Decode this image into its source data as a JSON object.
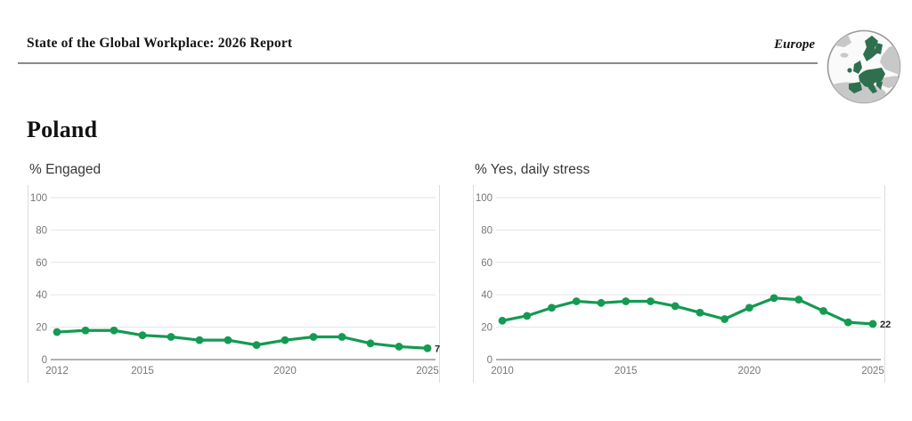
{
  "header": {
    "title": "State of the Global Workplace: 2026 Report",
    "region": "Europe"
  },
  "page": {
    "country": "Poland"
  },
  "colors": {
    "line": "#149a52",
    "grid": "#e5e5e5",
    "zero_axis": "#999999",
    "panel_border": "#dcdcdc",
    "tick_label": "#777777",
    "point_label": "#262626",
    "map_border": "#9a9a9a",
    "map_ocean": "#fafafa",
    "map_land": "#c8c8c8",
    "map_region": "#2f6f4f"
  },
  "chart_data": [
    {
      "type": "line",
      "title": "% Engaged",
      "x": [
        2012,
        2013,
        2014,
        2015,
        2016,
        2017,
        2018,
        2019,
        2020,
        2021,
        2022,
        2023,
        2024,
        2025
      ],
      "values": [
        17,
        18,
        18,
        15,
        14,
        12,
        12,
        9,
        12,
        14,
        14,
        10,
        8,
        7
      ],
      "ylim": [
        0,
        100
      ],
      "yticks": [
        0,
        20,
        40,
        60,
        80,
        100
      ],
      "xticks": [
        2012,
        2015,
        2020,
        2025
      ],
      "grid": true,
      "legend": "none",
      "last_point_label": "7"
    },
    {
      "type": "line",
      "title": "% Yes, daily stress",
      "x": [
        2010,
        2011,
        2012,
        2013,
        2014,
        2015,
        2016,
        2017,
        2018,
        2019,
        2020,
        2021,
        2022,
        2023,
        2024,
        2025
      ],
      "values": [
        24,
        27,
        32,
        36,
        35,
        36,
        36,
        33,
        29,
        25,
        32,
        38,
        37,
        30,
        23,
        22
      ],
      "ylim": [
        0,
        100
      ],
      "yticks": [
        0,
        20,
        40,
        60,
        80,
        100
      ],
      "xticks": [
        2010,
        2015,
        2020,
        2025
      ],
      "grid": true,
      "legend": "none",
      "last_point_label": "22"
    }
  ]
}
